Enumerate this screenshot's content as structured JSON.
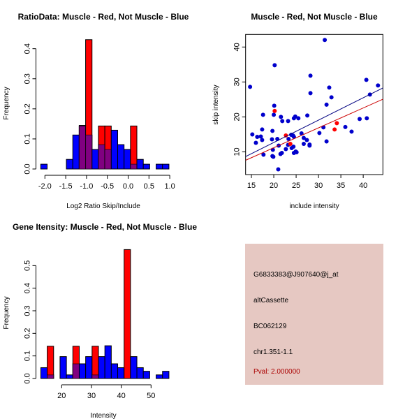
{
  "colors": {
    "blue": "#0000ff",
    "red": "#ff0000",
    "overlap": "#800080",
    "scatter_blue": "#0000cc",
    "panel_bg": "#e6c8c2",
    "pval": "#aa0000",
    "line_blue": "#000080",
    "line_red": "#cc0000"
  },
  "chart_data": [
    {
      "type": "bar",
      "title": "RatioData: Muscle - Red, Not Muscle - Blue",
      "xlabel": "Log2 Ratio Skip/Include",
      "ylabel": "Frequency",
      "xlim": [
        -2.1,
        0.98
      ],
      "ylim": [
        0,
        0.43
      ],
      "bin_start": -2.1,
      "bin_width": 0.154,
      "xticks": [
        -2.0,
        -1.5,
        -1.0,
        -0.5,
        0.0,
        0.5,
        1.0
      ],
      "xtick_labels": [
        "-2.0",
        "-1.5",
        "-1.0",
        "-0.5",
        "0.0",
        "0.5",
        "1.0"
      ],
      "yticks": [
        0.0,
        0.1,
        0.2,
        0.3,
        0.4
      ],
      "ytick_labels": [
        "0.0",
        "0.1",
        "0.2",
        "0.3",
        "0.4"
      ],
      "series": [
        {
          "name": "Not Muscle",
          "color": "blue",
          "values": [
            0.016,
            0,
            0,
            0,
            0.032,
            0.113,
            0.145,
            0.113,
            0.065,
            0.081,
            0.065,
            0.129,
            0.081,
            0.065,
            0.016,
            0.032,
            0.016,
            0,
            0.016,
            0.016
          ]
        },
        {
          "name": "Muscle",
          "color": "red",
          "values": [
            0,
            0,
            0,
            0,
            0,
            0,
            0.143,
            0.43,
            0,
            0.143,
            0.143,
            0,
            0,
            0,
            0.143,
            0,
            0,
            0,
            0,
            0
          ]
        }
      ]
    },
    {
      "type": "scatter",
      "title": "Muscle - Red, Not Muscle - Blue",
      "xlabel": "include intensity",
      "ylabel": "skip intensity",
      "xlim": [
        13.7,
        44.4
      ],
      "ylim": [
        3.5,
        43.6
      ],
      "xticks": [
        15,
        20,
        25,
        30,
        35,
        40
      ],
      "xtick_labels": [
        "15",
        "20",
        "25",
        "30",
        "35",
        "40"
      ],
      "yticks": [
        10,
        20,
        30,
        40
      ],
      "ytick_labels": [
        "10",
        "20",
        "30",
        "40"
      ],
      "series": [
        {
          "name": "Not Muscle",
          "color": "scatter_blue",
          "points": [
            [
              14.7,
              28.6
            ],
            [
              15.2,
              15.0
            ],
            [
              16.0,
              12.6
            ],
            [
              16.3,
              14.3
            ],
            [
              17.1,
              14.4
            ],
            [
              17.4,
              16.4
            ],
            [
              17.4,
              13.4
            ],
            [
              17.6,
              20.6
            ],
            [
              17.7,
              9.2
            ],
            [
              19.7,
              16.0
            ],
            [
              19.6,
              13.6
            ],
            [
              19.8,
              10.6
            ],
            [
              19.7,
              8.8
            ],
            [
              19.9,
              8.6
            ],
            [
              20.1,
              23.2
            ],
            [
              20.2,
              34.8
            ],
            [
              20.0,
              20.6
            ],
            [
              20.8,
              13.7
            ],
            [
              21.0,
              5.0
            ],
            [
              21.1,
              11.8
            ],
            [
              21.6,
              20.0
            ],
            [
              21.9,
              18.8
            ],
            [
              21.5,
              9.4
            ],
            [
              21.8,
              9.7
            ],
            [
              22.7,
              10.8
            ],
            [
              23.2,
              18.8
            ],
            [
              23.2,
              12.0
            ],
            [
              23.3,
              13.7
            ],
            [
              23.9,
              14.9
            ],
            [
              24.0,
              11.1
            ],
            [
              24.3,
              14.7
            ],
            [
              24.5,
              14.3
            ],
            [
              24.4,
              11.5
            ],
            [
              24.5,
              9.7
            ],
            [
              24.5,
              19.6
            ],
            [
              24.8,
              20.1
            ],
            [
              24.9,
              10.1
            ],
            [
              25.1,
              9.9
            ],
            [
              25.5,
              19.6
            ],
            [
              26.2,
              15.3
            ],
            [
              26.7,
              14.0
            ],
            [
              26.7,
              12.3
            ],
            [
              27.4,
              13.4
            ],
            [
              27.5,
              20.4
            ],
            [
              28.0,
              12.1
            ],
            [
              28.0,
              11.8
            ],
            [
              28.2,
              31.8
            ],
            [
              28.2,
              26.8
            ],
            [
              30.2,
              15.4
            ],
            [
              31.1,
              17.0
            ],
            [
              31.4,
              42.0
            ],
            [
              31.8,
              23.5
            ],
            [
              31.8,
              13.0
            ],
            [
              32.4,
              28.4
            ],
            [
              32.9,
              25.6
            ],
            [
              36.0,
              17.1
            ],
            [
              37.4,
              15.8
            ],
            [
              39.2,
              19.4
            ],
            [
              40.7,
              30.6
            ],
            [
              40.8,
              19.6
            ],
            [
              41.5,
              26.4
            ],
            [
              43.3,
              29.0
            ]
          ],
          "fit": {
            "slope": 0.639,
            "intercept": -0.09,
            "color": "line_blue"
          }
        },
        {
          "name": "Muscle",
          "color": "red",
          "points": [
            [
              20.2,
              21.7
            ],
            [
              22.7,
              14.7
            ],
            [
              23.7,
              12.3
            ],
            [
              33.6,
              16.4
            ],
            [
              34.1,
              18.2
            ]
          ],
          "fit": {
            "slope": 0.569,
            "intercept": -0.2,
            "color": "line_red"
          }
        }
      ]
    },
    {
      "type": "bar",
      "title": "Gene Itensity: Muscle - Red, Not Muscle - Blue",
      "xlabel": "Intensity",
      "ylabel": "Frequency",
      "xlim": [
        13,
        56
      ],
      "ylim": [
        0,
        0.57
      ],
      "bin_start": 13,
      "bin_width": 2.15,
      "xticks": [
        20,
        30,
        40,
        50
      ],
      "xtick_labels": [
        "20",
        "30",
        "40",
        "50"
      ],
      "yticks": [
        0.0,
        0.1,
        0.2,
        0.3,
        0.4,
        0.5
      ],
      "ytick_labels": [
        "0.0",
        "0.1",
        "0.2",
        "0.3",
        "0.4",
        "0.5"
      ],
      "series": [
        {
          "name": "Not Muscle",
          "color": "blue",
          "values": [
            0.048,
            0.016,
            0,
            0.097,
            0.016,
            0.065,
            0.065,
            0.097,
            0.016,
            0.097,
            0.145,
            0.065,
            0.048,
            0,
            0.097,
            0.048,
            0.032,
            0,
            0.016,
            0.032
          ]
        },
        {
          "name": "Muscle",
          "color": "red",
          "values": [
            0,
            0.143,
            0,
            0,
            0,
            0.143,
            0,
            0,
            0.143,
            0,
            0,
            0,
            0,
            0.571,
            0,
            0,
            0,
            0,
            0,
            0
          ]
        }
      ]
    }
  ],
  "info_panel": {
    "probe_id": "G6833383@J907640@j_at",
    "event_type": "altCassette",
    "accession": "BC062129",
    "location": "chr1.351-1.1",
    "pval": "Pval: 2.000000"
  }
}
